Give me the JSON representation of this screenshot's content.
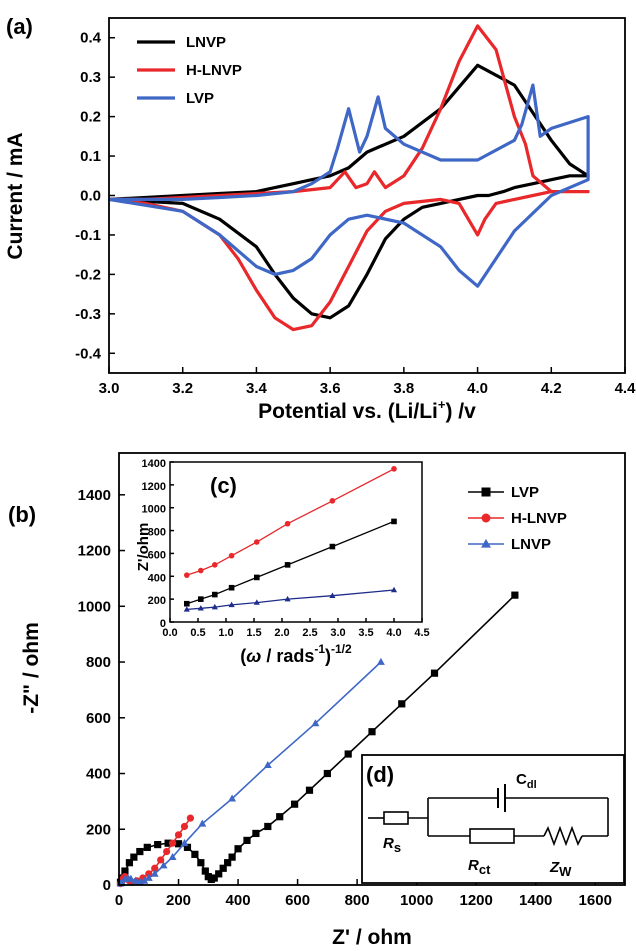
{
  "colors": {
    "black": "#000000",
    "red": "#e8282a",
    "blue": "#3f67c6",
    "navy": "#1e2c8c"
  },
  "chart_data": [
    {
      "panel": "(a)",
      "type": "line",
      "xlabel_parts": [
        "Potential vs. (Li/Li",
        "+",
        ") /v"
      ],
      "ylabel": "Current / mA",
      "xlim": [
        3.0,
        4.4
      ],
      "ylim": [
        -0.45,
        0.45
      ],
      "x_ticks": [
        "3.0",
        "3.2",
        "3.4",
        "3.6",
        "3.8",
        "4.0",
        "4.2",
        "4.4"
      ],
      "y_ticks": [
        "-0.4",
        "-0.3",
        "-0.2",
        "-0.1",
        "0.0",
        "0.1",
        "0.2",
        "0.3",
        "0.4"
      ],
      "legend_position": "top-left",
      "series": [
        {
          "name": "LNVP",
          "color": "#000000",
          "x": [
            3.0,
            3.2,
            3.3,
            3.4,
            3.45,
            3.5,
            3.55,
            3.6,
            3.65,
            3.7,
            3.75,
            3.8,
            3.85,
            3.9,
            3.95,
            4.0,
            4.03,
            4.07,
            4.1,
            4.15,
            4.2,
            4.25,
            4.3,
            4.3,
            4.25,
            4.2,
            4.1,
            4.0,
            3.9,
            3.8,
            3.7,
            3.65,
            3.6,
            3.55,
            3.5,
            3.45,
            3.4,
            3.3,
            3.2,
            3.0
          ],
          "y": [
            -0.01,
            -0.02,
            -0.06,
            -0.13,
            -0.2,
            -0.26,
            -0.3,
            -0.31,
            -0.28,
            -0.2,
            -0.11,
            -0.06,
            -0.03,
            -0.02,
            -0.01,
            0.0,
            0.0,
            0.01,
            0.02,
            0.03,
            0.04,
            0.05,
            0.05,
            0.05,
            0.08,
            0.14,
            0.28,
            0.33,
            0.22,
            0.15,
            0.11,
            0.07,
            0.05,
            0.04,
            0.03,
            0.02,
            0.01,
            0.005,
            0.0,
            -0.01
          ]
        },
        {
          "name": "H-LNVP",
          "color": "#e8282a",
          "x": [
            3.0,
            3.1,
            3.2,
            3.3,
            3.35,
            3.4,
            3.45,
            3.5,
            3.55,
            3.6,
            3.65,
            3.7,
            3.75,
            3.8,
            3.9,
            3.95,
            4.0,
            4.02,
            4.05,
            4.1,
            4.15,
            4.2,
            4.3,
            4.3,
            4.2,
            4.15,
            4.13,
            4.1,
            4.05,
            4.0,
            3.95,
            3.9,
            3.85,
            3.8,
            3.75,
            3.72,
            3.7,
            3.67,
            3.64,
            3.62,
            3.6,
            3.5,
            3.4,
            3.3,
            3.2,
            3.1,
            3.0
          ],
          "y": [
            -0.01,
            -0.02,
            -0.04,
            -0.1,
            -0.16,
            -0.24,
            -0.31,
            -0.34,
            -0.33,
            -0.27,
            -0.18,
            -0.09,
            -0.04,
            -0.02,
            -0.01,
            -0.02,
            -0.1,
            -0.06,
            -0.02,
            -0.01,
            0.0,
            0.01,
            0.01,
            0.01,
            0.01,
            0.05,
            0.13,
            0.2,
            0.37,
            0.43,
            0.34,
            0.22,
            0.12,
            0.05,
            0.02,
            0.06,
            0.03,
            0.02,
            0.06,
            0.04,
            0.02,
            0.01,
            0.005,
            0.0,
            -0.005,
            -0.01,
            -0.01
          ]
        },
        {
          "name": "LVP",
          "color": "#3f67c6",
          "x": [
            3.0,
            3.2,
            3.3,
            3.4,
            3.45,
            3.5,
            3.55,
            3.6,
            3.65,
            3.7,
            3.8,
            3.9,
            3.95,
            4.0,
            4.05,
            4.1,
            4.2,
            4.3,
            4.3,
            4.2,
            4.17,
            4.15,
            4.12,
            4.1,
            4.0,
            3.9,
            3.8,
            3.75,
            3.73,
            3.7,
            3.68,
            3.65,
            3.62,
            3.6,
            3.55,
            3.5,
            3.4,
            3.3,
            3.2,
            3.0
          ],
          "y": [
            -0.01,
            -0.04,
            -0.1,
            -0.18,
            -0.2,
            -0.19,
            -0.16,
            -0.1,
            -0.06,
            -0.05,
            -0.07,
            -0.13,
            -0.19,
            -0.23,
            -0.16,
            -0.09,
            0.0,
            0.04,
            0.2,
            0.17,
            0.15,
            0.28,
            0.18,
            0.14,
            0.09,
            0.09,
            0.13,
            0.17,
            0.25,
            0.15,
            0.11,
            0.22,
            0.12,
            0.06,
            0.03,
            0.01,
            0.0,
            -0.005,
            -0.01,
            -0.01
          ]
        }
      ]
    },
    {
      "panel": "(b)",
      "type": "scatter",
      "xlabel": "Z' / ohm",
      "ylabel": "-Z\" / ohm",
      "xlim": [
        0,
        1700
      ],
      "ylim": [
        0,
        1550
      ],
      "x_ticks": [
        "0",
        "200",
        "400",
        "600",
        "800",
        "1000",
        "1200",
        "1400",
        "1600"
      ],
      "y_ticks": [
        "0",
        "200",
        "400",
        "600",
        "800",
        "1000",
        "1200",
        "1400"
      ],
      "legend_position": "top-right",
      "series": [
        {
          "name": "LVP",
          "color": "#000000",
          "marker": "square",
          "x": [
            5,
            10,
            20,
            35,
            50,
            70,
            95,
            130,
            165,
            200,
            230,
            255,
            275,
            290,
            300,
            310,
            320,
            335,
            350,
            365,
            380,
            400,
            430,
            460,
            500,
            540,
            590,
            640,
            700,
            770,
            850,
            950,
            1060,
            1330
          ],
          "y": [
            10,
            25,
            50,
            80,
            100,
            120,
            135,
            145,
            150,
            148,
            135,
            110,
            80,
            50,
            30,
            20,
            25,
            40,
            60,
            80,
            100,
            130,
            160,
            185,
            210,
            245,
            290,
            340,
            400,
            470,
            550,
            650,
            760,
            1040
          ]
        },
        {
          "name": "H-LNVP",
          "color": "#e8282a",
          "marker": "circle",
          "x": [
            5,
            10,
            15,
            20,
            25,
            35,
            45,
            60,
            80,
            100,
            120,
            140,
            160,
            180,
            200,
            220,
            240
          ],
          "y": [
            5,
            15,
            25,
            30,
            25,
            15,
            10,
            15,
            25,
            40,
            60,
            90,
            120,
            150,
            180,
            210,
            240
          ]
        },
        {
          "name": "LNVP",
          "color": "#3f67c6",
          "marker": "triangle",
          "x": [
            5,
            10,
            20,
            30,
            40,
            55,
            70,
            85,
            100,
            120,
            150,
            180,
            220,
            280,
            380,
            500,
            660,
            880
          ],
          "y": [
            5,
            10,
            20,
            25,
            22,
            15,
            12,
            15,
            25,
            40,
            70,
            100,
            150,
            220,
            310,
            430,
            580,
            800
          ]
        }
      ]
    },
    {
      "panel": "(c)",
      "type": "line",
      "xlabel_parts": [
        "(",
        "ω",
        " / rads",
        "-1",
        ")",
        "-1/2"
      ],
      "ylabel": "Z'/ohm",
      "xlim": [
        0,
        4.5
      ],
      "ylim": [
        0,
        1400
      ],
      "x_ticks": [
        "0.0",
        "0.5",
        "1.0",
        "1.5",
        "2.0",
        "2.5",
        "3.0",
        "3.5",
        "4.0",
        "4.5"
      ],
      "y_ticks": [
        "0",
        "200",
        "400",
        "600",
        "800",
        "1000",
        "1200",
        "1400"
      ],
      "series": [
        {
          "name": "H-LNVP",
          "color": "#e8282a",
          "marker": "circle",
          "x": [
            0.3,
            0.55,
            0.8,
            1.1,
            1.55,
            2.1,
            2.9,
            4.0
          ],
          "y": [
            410,
            450,
            500,
            580,
            700,
            860,
            1060,
            1340
          ]
        },
        {
          "name": "LVP",
          "color": "#000000",
          "marker": "square",
          "x": [
            0.3,
            0.55,
            0.8,
            1.1,
            1.55,
            2.1,
            2.9,
            4.0
          ],
          "y": [
            160,
            200,
            240,
            300,
            390,
            500,
            660,
            880
          ]
        },
        {
          "name": "LNVP",
          "color": "#1e2c8c",
          "marker": "triangle",
          "x": [
            0.3,
            0.55,
            0.8,
            1.1,
            1.55,
            2.1,
            2.9,
            4.0
          ],
          "y": [
            110,
            120,
            130,
            150,
            170,
            200,
            230,
            280
          ]
        }
      ]
    }
  ],
  "panel_d": {
    "label": "(d)",
    "rs": "R",
    "rs_sub": "s",
    "rct": "R",
    "rct_sub": "ct",
    "zw": "Z",
    "zw_sub": "W",
    "cdl": "C",
    "cdl_sub": "dl"
  }
}
